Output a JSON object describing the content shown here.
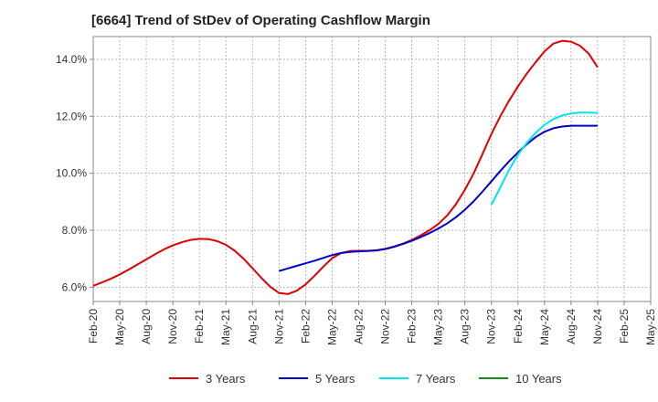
{
  "chart_data": {
    "type": "line",
    "title": "[6664]  Trend of StDev of Operating Cashflow Margin",
    "xlabel": "",
    "ylabel": "",
    "x_ticks": [
      "Feb-20",
      "May-20",
      "Aug-20",
      "Nov-20",
      "Feb-21",
      "May-21",
      "Aug-21",
      "Nov-21",
      "Feb-22",
      "May-22",
      "Aug-22",
      "Nov-22",
      "Feb-23",
      "May-23",
      "Aug-23",
      "Nov-23",
      "Feb-24",
      "May-24",
      "Aug-24",
      "Nov-24",
      "Feb-25",
      "May-25"
    ],
    "y_ticks": [
      "6.0%",
      "8.0%",
      "10.0%",
      "12.0%",
      "14.0%"
    ],
    "ylim": [
      5.5,
      14.8
    ],
    "grid": true,
    "legend_position": "bottom",
    "series": [
      {
        "name": "3 Years",
        "color": "#e00000",
        "x": [
          "Feb-20",
          "Mar-20",
          "Apr-20",
          "May-20",
          "Jun-20",
          "Jul-20",
          "Aug-20",
          "Sep-20",
          "Oct-20",
          "Nov-20",
          "Dec-20",
          "Jan-21",
          "Feb-21",
          "Mar-21",
          "Apr-21",
          "May-21",
          "Jun-21",
          "Jul-21",
          "Aug-21",
          "Sep-21",
          "Oct-21",
          "Nov-21",
          "Dec-21",
          "Jan-22",
          "Feb-22",
          "Mar-22",
          "Apr-22",
          "May-22",
          "Jun-22",
          "Jul-22",
          "Aug-22",
          "Sep-22",
          "Oct-22",
          "Nov-22",
          "Dec-22",
          "Jan-23",
          "Feb-23",
          "Mar-23",
          "Apr-23",
          "May-23",
          "Jun-23",
          "Jul-23",
          "Aug-23",
          "Sep-23",
          "Oct-23",
          "Nov-23",
          "Dec-23",
          "Jan-24",
          "Feb-24",
          "Mar-24",
          "Apr-24",
          "May-24",
          "Jun-24",
          "Jul-24",
          "Aug-24",
          "Sep-24",
          "Oct-24",
          "Nov-24"
        ],
        "values": [
          6.05,
          6.17,
          6.3,
          6.45,
          6.62,
          6.8,
          6.98,
          7.16,
          7.33,
          7.47,
          7.58,
          7.66,
          7.7,
          7.69,
          7.62,
          7.49,
          7.28,
          7.0,
          6.67,
          6.33,
          6.02,
          5.8,
          5.76,
          5.88,
          6.1,
          6.4,
          6.72,
          7.02,
          7.2,
          7.27,
          7.28,
          7.28,
          7.3,
          7.35,
          7.43,
          7.53,
          7.66,
          7.82,
          8.0,
          8.22,
          8.52,
          8.92,
          9.42,
          10.0,
          10.68,
          11.38,
          12.0,
          12.55,
          13.05,
          13.5,
          13.9,
          14.28,
          14.55,
          14.65,
          14.62,
          14.48,
          14.2,
          13.72
        ]
      },
      {
        "name": "5 Years",
        "color": "#0000cc",
        "x": [
          "Nov-21",
          "Dec-21",
          "Jan-22",
          "Feb-22",
          "Mar-22",
          "Apr-22",
          "May-22",
          "Jun-22",
          "Jul-22",
          "Aug-22",
          "Sep-22",
          "Oct-22",
          "Nov-22",
          "Dec-22",
          "Jan-23",
          "Feb-23",
          "Mar-23",
          "Apr-23",
          "May-23",
          "Jun-23",
          "Jul-23",
          "Aug-23",
          "Sep-23",
          "Oct-23",
          "Nov-23",
          "Dec-23",
          "Jan-24",
          "Feb-24",
          "Mar-24",
          "Apr-24",
          "May-24",
          "Jun-24",
          "Jul-24",
          "Aug-24",
          "Sep-24",
          "Oct-24",
          "Nov-24"
        ],
        "values": [
          6.57,
          6.66,
          6.75,
          6.84,
          6.93,
          7.03,
          7.13,
          7.2,
          7.24,
          7.26,
          7.27,
          7.29,
          7.34,
          7.42,
          7.52,
          7.63,
          7.76,
          7.9,
          8.06,
          8.24,
          8.46,
          8.72,
          9.02,
          9.36,
          9.72,
          10.08,
          10.42,
          10.73,
          11.02,
          11.27,
          11.46,
          11.58,
          11.64,
          11.67,
          11.67,
          11.67,
          11.67
        ]
      },
      {
        "name": "7 Years",
        "color": "#00e5ee",
        "x": [
          "Nov-23",
          "Dec-23",
          "Jan-24",
          "Feb-24",
          "Mar-24",
          "Apr-24",
          "May-24",
          "Jun-24",
          "Jul-24",
          "Aug-24",
          "Sep-24",
          "Oct-24",
          "Nov-24"
        ],
        "values": [
          8.9,
          9.5,
          10.12,
          10.65,
          11.07,
          11.42,
          11.7,
          11.9,
          12.03,
          12.1,
          12.13,
          12.13,
          12.12
        ]
      },
      {
        "name": "10 Years",
        "color": "#1a8a1a",
        "x": [],
        "values": []
      }
    ]
  }
}
